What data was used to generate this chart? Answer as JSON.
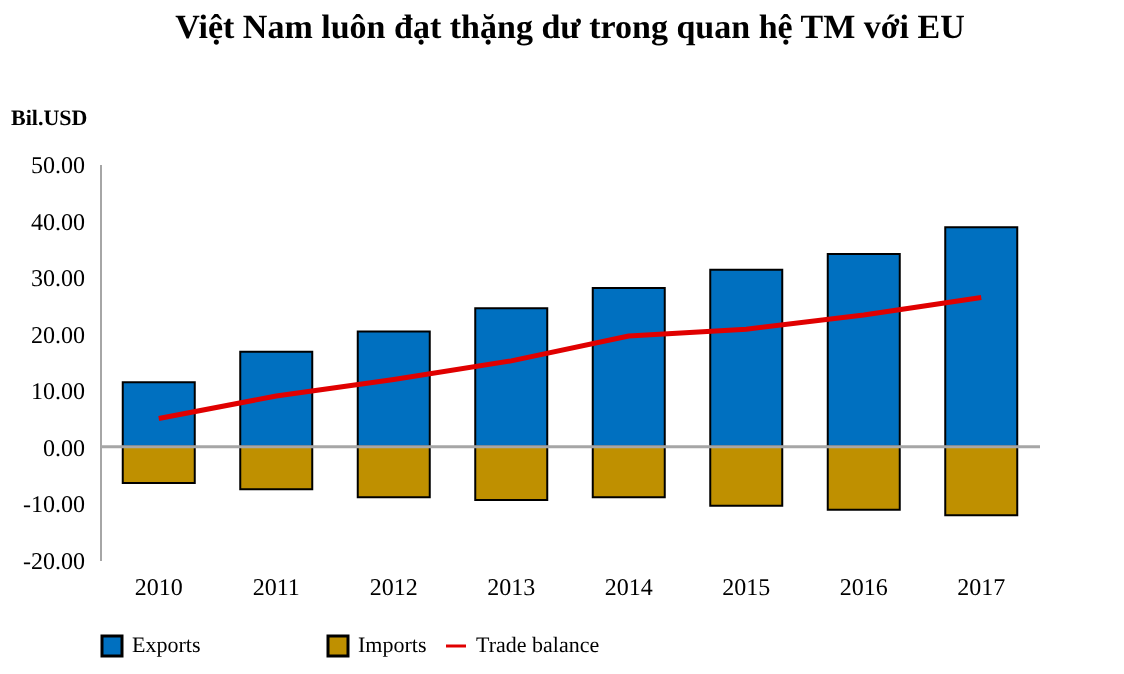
{
  "chart_data": {
    "type": "bar",
    "title": "Việt Nam luôn đạt thặng dư trong quan hệ TM với EU",
    "ylabel": "Bil.USD",
    "categories": [
      "2010",
      "2011",
      "2012",
      "2013",
      "2014",
      "2015",
      "2016",
      "2017"
    ],
    "series": [
      {
        "name": "Exports",
        "color": "#0070c0",
        "values": [
          11.4,
          16.8,
          20.4,
          24.5,
          28.1,
          31.3,
          34.1,
          38.8
        ]
      },
      {
        "name": "Imports",
        "color": "#bf9000",
        "values": [
          -6.4,
          -7.5,
          -8.9,
          -9.4,
          -8.9,
          -10.4,
          -11.1,
          -12.1
        ]
      },
      {
        "name": "Trade balance",
        "type": "line",
        "color": "#e00000",
        "values": [
          5.0,
          9.0,
          11.9,
          15.2,
          19.6,
          20.8,
          23.3,
          26.4
        ]
      }
    ],
    "ylim": [
      -20,
      50
    ],
    "yticks": [
      {
        "value": -20,
        "label": "-20.00"
      },
      {
        "value": -10,
        "label": "-10.00"
      },
      {
        "value": 0,
        "label": "0.00"
      },
      {
        "value": 10,
        "label": "10.00"
      },
      {
        "value": 20,
        "label": "20.00"
      },
      {
        "value": 30,
        "label": "30.00"
      },
      {
        "value": 40,
        "label": "40.00"
      },
      {
        "value": 50,
        "label": "50.00"
      }
    ],
    "ref_lines": [
      {
        "axis": "y",
        "value": 0,
        "color": "#a6a6a6"
      }
    ],
    "stacked": true,
    "grid": false,
    "legend": "bottom",
    "marker": "none",
    "line_style": "solid"
  }
}
